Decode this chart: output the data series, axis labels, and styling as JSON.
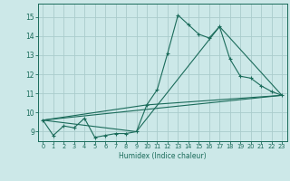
{
  "xlabel": "Humidex (Indice chaleur)",
  "bg_color": "#cce8e8",
  "grid_color": "#aacccc",
  "line_color": "#1a6b5a",
  "xlim": [
    -0.5,
    23.5
  ],
  "ylim": [
    8.5,
    15.7
  ],
  "xticks": [
    0,
    1,
    2,
    3,
    4,
    5,
    6,
    7,
    8,
    9,
    10,
    11,
    12,
    13,
    14,
    15,
    16,
    17,
    18,
    19,
    20,
    21,
    22,
    23
  ],
  "yticks": [
    9,
    10,
    11,
    12,
    13,
    14,
    15
  ],
  "series1_x": [
    0,
    1,
    2,
    3,
    4,
    5,
    6,
    7,
    8,
    9,
    10,
    11,
    12,
    13,
    14,
    15,
    16,
    17,
    18,
    19,
    20,
    21,
    22,
    23
  ],
  "series1_y": [
    9.6,
    8.8,
    9.3,
    9.2,
    9.7,
    8.7,
    8.8,
    8.9,
    8.9,
    9.0,
    10.4,
    11.2,
    13.1,
    15.1,
    14.6,
    14.1,
    13.9,
    14.5,
    12.8,
    11.9,
    11.8,
    11.4,
    11.1,
    10.9
  ],
  "series2_x": [
    0,
    23
  ],
  "series2_y": [
    9.6,
    10.9
  ],
  "series3_x": [
    0,
    9,
    17,
    23
  ],
  "series3_y": [
    9.6,
    9.0,
    14.5,
    10.9
  ],
  "series4_x": [
    0,
    10,
    23
  ],
  "series4_y": [
    9.6,
    10.4,
    10.9
  ]
}
